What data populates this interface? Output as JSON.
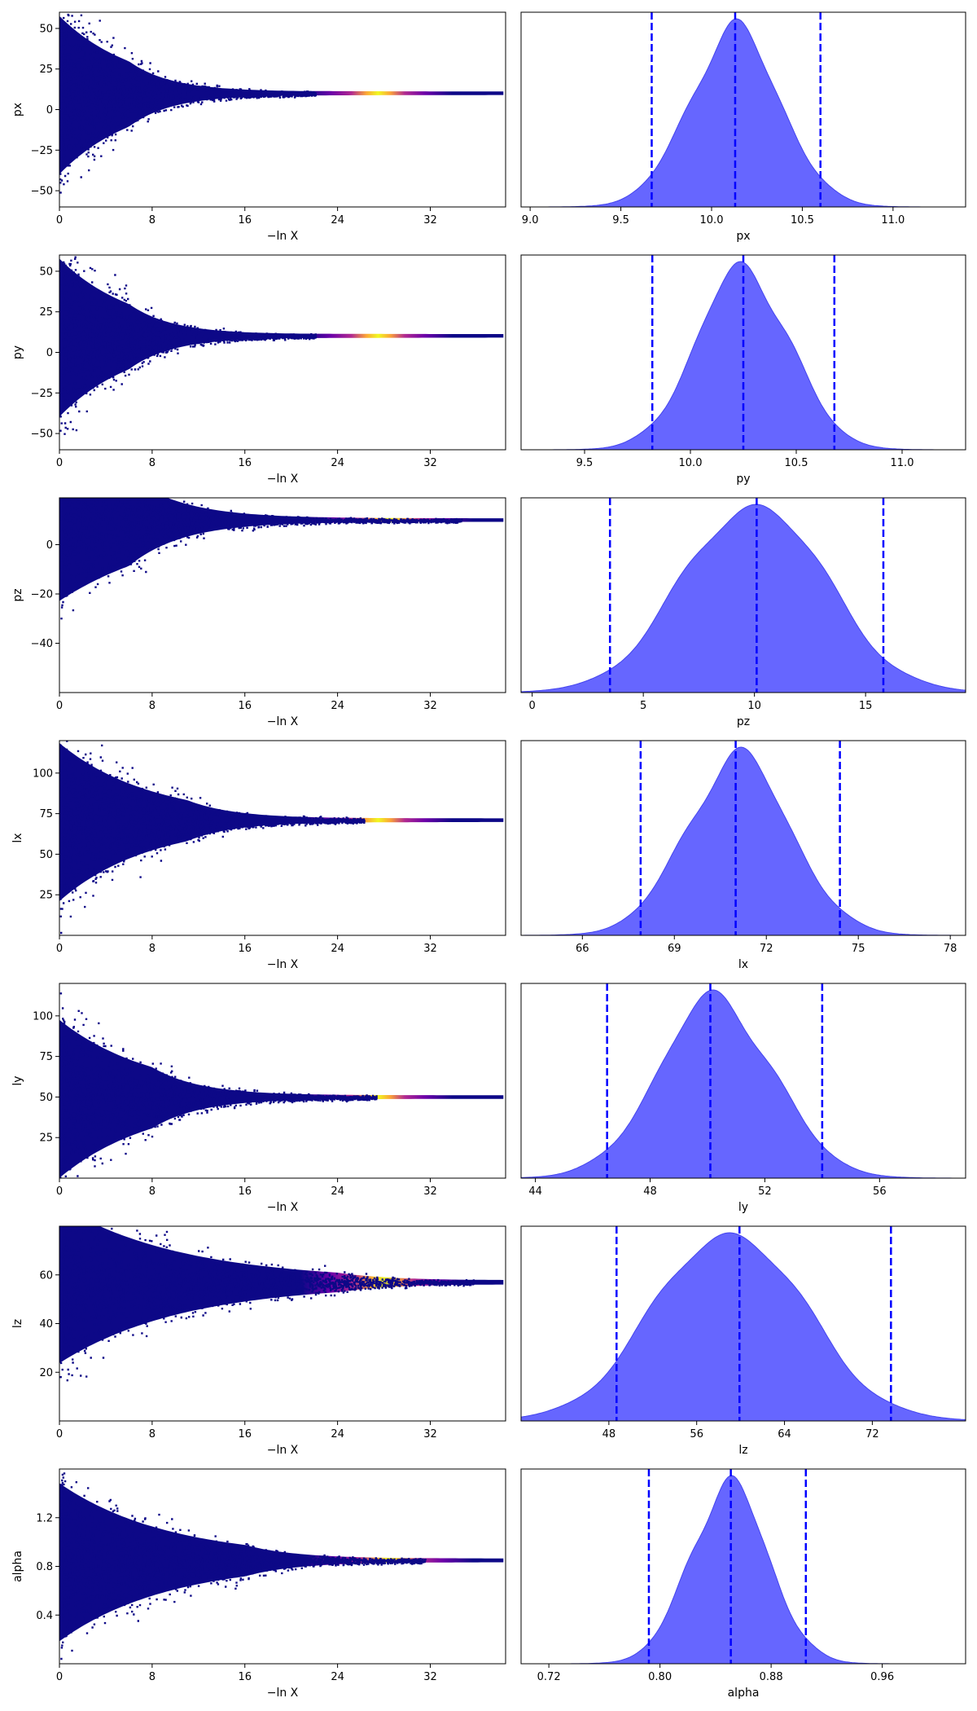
{
  "figure": {
    "colormap": [
      "#0d0887",
      "#6a00a8",
      "#b12a90",
      "#e16462",
      "#fca636",
      "#f0f921"
    ],
    "scatter_color": "#0d0887",
    "kde_fill": "#6666ff",
    "kde_edge": "#4444ee",
    "line_color": "#0000ff"
  },
  "chart_data": [
    {
      "type": "scatter",
      "parameter": "px",
      "xlabel": "−ln X",
      "ylabel": "px",
      "xlim": [
        0,
        38.5
      ],
      "ylim": [
        -60,
        60
      ],
      "xticks": [
        0,
        8,
        16,
        24,
        32
      ],
      "yticks": [
        -50,
        -25,
        0,
        25,
        50
      ],
      "converged_value": 10.1,
      "cloud_start": 6.0,
      "bright_peak": 27.5,
      "bright_width": 4.0,
      "wide_end": 21.0
    },
    {
      "type": "area",
      "parameter": "px",
      "xlabel": "px",
      "xlim": [
        8.95,
        11.4
      ],
      "xticks": [
        9.0,
        9.5,
        10.0,
        10.5,
        11.0
      ],
      "density_mean": 10.13,
      "density_sd": 0.25,
      "quantile_lines": [
        9.67,
        10.13,
        10.6
      ]
    },
    {
      "type": "scatter",
      "parameter": "py",
      "xlabel": "−ln X",
      "ylabel": "py",
      "xlim": [
        0,
        38.5
      ],
      "ylim": [
        -60,
        60
      ],
      "xticks": [
        0,
        8,
        16,
        24,
        32
      ],
      "yticks": [
        -50,
        -25,
        0,
        25,
        50
      ],
      "converged_value": 10.2,
      "cloud_start": 6.0,
      "bright_peak": 27.5,
      "bright_width": 4.0,
      "wide_end": 21.0
    },
    {
      "type": "area",
      "parameter": "py",
      "xlabel": "py",
      "xlim": [
        9.2,
        11.3
      ],
      "xticks": [
        9.5,
        10.0,
        10.5,
        11.0
      ],
      "density_mean": 10.25,
      "density_sd": 0.22,
      "quantile_lines": [
        9.82,
        10.25,
        10.68
      ]
    },
    {
      "type": "scatter",
      "parameter": "pz",
      "xlabel": "−ln X",
      "ylabel": "pz",
      "xlim": [
        0,
        38.5
      ],
      "ylim": [
        -60,
        19
      ],
      "xticks": [
        0,
        8,
        16,
        24,
        32
      ],
      "yticks": [
        -40,
        -20,
        0
      ],
      "converged_value": 10.0,
      "cloud_start": 6.0,
      "bright_peak": 28.5,
      "bright_width": 4.5,
      "wide_end": 33.0
    },
    {
      "type": "area",
      "parameter": "pz",
      "xlabel": "pz",
      "xlim": [
        -0.5,
        19.5
      ],
      "xticks": [
        0,
        5,
        10,
        15
      ],
      "density_mean": 10.0,
      "density_sd": 3.2,
      "quantile_lines": [
        3.5,
        10.1,
        15.8
      ]
    },
    {
      "type": "scatter",
      "parameter": "lx",
      "xlabel": "−ln X",
      "ylabel": "lx",
      "xlim": [
        0,
        38.5
      ],
      "ylim": [
        0,
        120
      ],
      "xticks": [
        0,
        8,
        16,
        24,
        32
      ],
      "yticks": [
        25,
        50,
        75,
        100
      ],
      "converged_value": 71.0,
      "cloud_start": 11.0,
      "bright_peak": 27.5,
      "bright_width": 4.0,
      "wide_end": 25.0
    },
    {
      "type": "area",
      "parameter": "lx",
      "xlabel": "lx",
      "xlim": [
        64.0,
        78.5
      ],
      "xticks": [
        66,
        69,
        72,
        75,
        78
      ],
      "density_mean": 71.1,
      "density_sd": 1.7,
      "quantile_lines": [
        67.9,
        71.0,
        74.4
      ]
    },
    {
      "type": "scatter",
      "parameter": "ly",
      "xlabel": "−ln X",
      "ylabel": "ly",
      "xlim": [
        0,
        38.5
      ],
      "ylim": [
        0,
        120
      ],
      "xticks": [
        0,
        8,
        16,
        24,
        32
      ],
      "yticks": [
        25,
        50,
        75,
        100
      ],
      "converged_value": 50.0,
      "cloud_start": 8.0,
      "bright_peak": 27.5,
      "bright_width": 4.0,
      "wide_end": 26.0
    },
    {
      "type": "area",
      "parameter": "ly",
      "xlabel": "ly",
      "xlim": [
        43.5,
        59.0
      ],
      "xticks": [
        44,
        48,
        52,
        56
      ],
      "density_mean": 50.3,
      "density_sd": 2.0,
      "quantile_lines": [
        46.5,
        50.1,
        54.0
      ]
    },
    {
      "type": "scatter",
      "parameter": "lz",
      "xlabel": "−ln X",
      "ylabel": "lz",
      "xlim": [
        0,
        38.5
      ],
      "ylim": [
        0,
        80
      ],
      "xticks": [
        0,
        8,
        16,
        24,
        32
      ],
      "yticks": [
        20,
        40,
        60
      ],
      "converged_value": 57.0,
      "cloud_start": 24.0,
      "bright_peak": 28.0,
      "bright_width": 4.5,
      "wide_end": 34.0
    },
    {
      "type": "area",
      "parameter": "lz",
      "xlabel": "lz",
      "xlim": [
        40.0,
        80.5
      ],
      "xticks": [
        48,
        56,
        64,
        72
      ],
      "density_mean": 59.0,
      "density_sd": 6.8,
      "quantile_lines": [
        48.7,
        59.9,
        73.7
      ]
    },
    {
      "type": "scatter",
      "parameter": "alpha",
      "xlabel": "−ln X",
      "ylabel": "alpha",
      "xlim": [
        0,
        38.5
      ],
      "ylim": [
        0,
        1.6
      ],
      "xticks": [
        0,
        8,
        16,
        24,
        32
      ],
      "yticks": [
        0.4,
        0.8,
        1.2
      ],
      "converged_value": 0.85,
      "cloud_start": 16.0,
      "bright_peak": 28.5,
      "bright_width": 4.5,
      "wide_end": 30.0
    },
    {
      "type": "area",
      "parameter": "alpha",
      "xlabel": "alpha",
      "xlim": [
        0.7,
        1.02
      ],
      "xticks": [
        0.72,
        0.8,
        0.88,
        0.96
      ],
      "density_mean": 0.85,
      "density_sd": 0.028,
      "quantile_lines": [
        0.792,
        0.851,
        0.905
      ]
    }
  ]
}
